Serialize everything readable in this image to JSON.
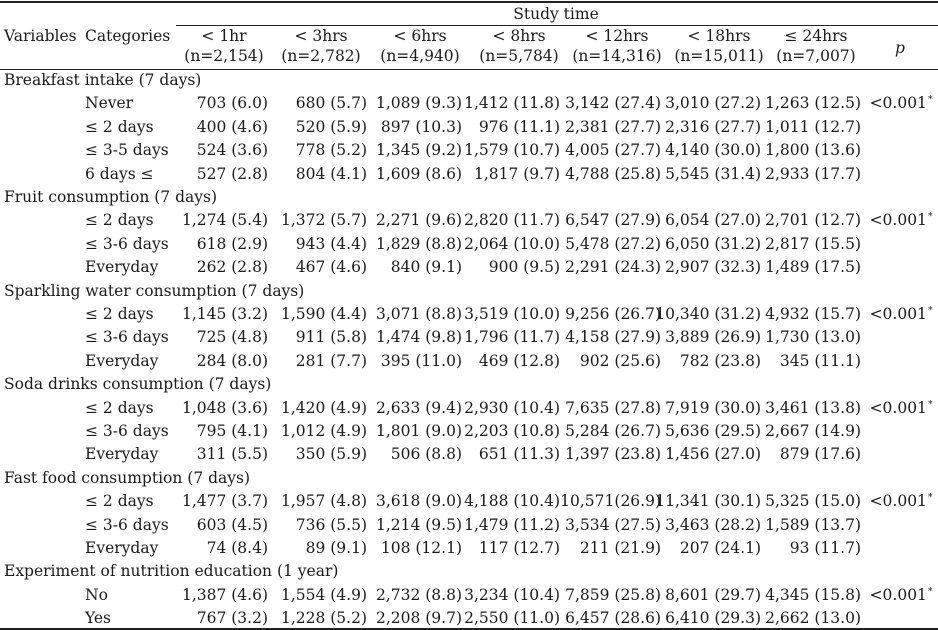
{
  "header": {
    "study_time_label": "Study time",
    "variables_label": "Variables",
    "categories_label": "Categories",
    "p_label": "p",
    "columns": [
      {
        "label": "< 1hr",
        "n": "(n=2,154)"
      },
      {
        "label": "< 3hrs",
        "n": "(n=2,782)"
      },
      {
        "label": "< 6hrs",
        "n": "(n=4,940)"
      },
      {
        "label": "< 8hrs",
        "n": "(n=5,784)"
      },
      {
        "label": "< 12hrs",
        "n": "(n=14,316)"
      },
      {
        "label": "< 18hrs",
        "n": "(n=15,011)"
      },
      {
        "label": "≤ 24hrs",
        "n": "(n=7,007)"
      }
    ]
  },
  "sections": [
    {
      "title": "Breakfast intake (7 days)",
      "p": "<0.001",
      "p_mark": "*",
      "rows": [
        {
          "cat": "Never",
          "vals": [
            "703 (6.0)",
            "680 (5.7)",
            "1,089 (9.3)",
            "1,412 (11.8)",
            "3,142 (27.4)",
            "3,010 (27.2)",
            "1,263 (12.5)"
          ]
        },
        {
          "cat": "≤ 2 days",
          "vals": [
            "400 (4.6)",
            "520 (5.9)",
            "897 (10.3)",
            "976 (11.1)",
            "2,381 (27.7)",
            "2,316 (27.7)",
            "1,011 (12.7)"
          ]
        },
        {
          "cat": "≤ 3-5 days",
          "vals": [
            "524 (3.6)",
            "778 (5.2)",
            "1,345 (9.2)",
            "1,579 (10.7)",
            "4,005 (27.7)",
            "4,140 (30.0)",
            "1,800 (13.6)"
          ]
        },
        {
          "cat": "6 days ≤",
          "vals": [
            "527 (2.8)",
            "804 (4.1)",
            "1,609 (8.6)",
            "1,817 (9.7)",
            "4,788 (25.8)",
            "5,545 (31.4)",
            "2,933 (17.7)"
          ]
        }
      ]
    },
    {
      "title": "Fruit consumption (7 days)",
      "p": "<0.001",
      "p_mark": "*",
      "rows": [
        {
          "cat": "≤ 2 days",
          "vals": [
            "1,274 (5.4)",
            "1,372 (5.7)",
            "2,271 (9.6)",
            "2,820 (11.7)",
            "6,547 (27.9)",
            "6,054 (27.0)",
            "2,701 (12.7)"
          ]
        },
        {
          "cat": "≤ 3-6 days",
          "vals": [
            "618 (2.9)",
            "943 (4.4)",
            "1,829 (8.8)",
            "2,064 (10.0)",
            "5,478 (27.2)",
            "6,050 (31.2)",
            "2,817 (15.5)"
          ]
        },
        {
          "cat": "Everyday",
          "vals": [
            "262 (2.8)",
            "467 (4.6)",
            "840 (9.1)",
            "900 (9.5)",
            "2,291 (24.3)",
            "2,907 (32.3)",
            "1,489 (17.5)"
          ]
        }
      ]
    },
    {
      "title": "Sparkling water consumption (7 days)",
      "p": "<0.001",
      "p_mark": "*",
      "rows": [
        {
          "cat": "≤ 2 days",
          "vals": [
            "1,145 (3.2)",
            "1,590 (4.4)",
            "3,071 (8.8)",
            "3,519 (10.0)",
            "9,256 (26.7)",
            "10,340 (31.2)",
            "4,932 (15.7)"
          ]
        },
        {
          "cat": "≤ 3-6 days",
          "vals": [
            "725 (4.8)",
            "911 (5.8)",
            "1,474 (9.8)",
            "1,796 (11.7)",
            "4,158 (27.9)",
            "3,889 (26.9)",
            "1,730 (13.0)"
          ]
        },
        {
          "cat": "Everyday",
          "vals": [
            "284 (8.0)",
            "281 (7.7)",
            "395 (11.0)",
            "469 (12.8)",
            "902 (25.6)",
            "782 (23.8)",
            "345 (11.1)"
          ]
        }
      ]
    },
    {
      "title": "Soda drinks consumption (7 days)",
      "p": "<0.001",
      "p_mark": "*",
      "rows": [
        {
          "cat": "≤ 2 days",
          "vals": [
            "1,048 (3.6)",
            "1,420 (4.9)",
            "2,633 (9.4)",
            "2,930 (10.4)",
            "7,635 (27.8)",
            "7,919 (30.0)",
            "3,461 (13.8)"
          ]
        },
        {
          "cat": "≤ 3-6 days",
          "vals": [
            "795 (4.1)",
            "1,012 (4.9)",
            "1,801 (9.0)",
            "2,203 (10.8)",
            "5,284 (26.7)",
            "5,636 (29.5)",
            "2,667 (14.9)"
          ]
        },
        {
          "cat": "Everyday",
          "vals": [
            "311 (5.5)",
            "350 (5.9)",
            "506 (8.8)",
            "651 (11.3)",
            "1,397 (23.8)",
            "1,456 (27.0)",
            "879 (17.6)"
          ]
        }
      ]
    },
    {
      "title": "Fast food consumption (7 days)",
      "p": "<0.001",
      "p_mark": "*",
      "rows": [
        {
          "cat": "≤ 2 days",
          "vals": [
            "1,477 (3.7)",
            "1,957 (4.8)",
            "3,618 (9.0)",
            "4,188 (10.4)",
            "10,571(26.9)",
            "11,341 (30.1)",
            "5,325 (15.0)"
          ]
        },
        {
          "cat": "≤ 3-6 days",
          "vals": [
            "603 (4.5)",
            "736 (5.5)",
            "1,214 (9.5)",
            "1,479 (11.2)",
            "3,534 (27.5)",
            "3,463 (28.2)",
            "1,589 (13.7)"
          ]
        },
        {
          "cat": "Everyday",
          "vals": [
            "74 (8.4)",
            "89 (9.1)",
            "108 (12.1)",
            "117 (12.7)",
            "211 (21.9)",
            "207 (24.1)",
            "93 (11.7)"
          ]
        }
      ]
    },
    {
      "title": "Experiment of nutrition education (1 year)",
      "p": "<0.001",
      "p_mark": "*",
      "rows": [
        {
          "cat": "No",
          "vals": [
            "1,387 (4.6)",
            "1,554 (4.9)",
            "2,732 (8.8)",
            "3,234 (10.4)",
            "7,859 (25.8)",
            "8,601 (29.7)",
            "4,345 (15.8)"
          ]
        },
        {
          "cat": "Yes",
          "vals": [
            "767 (3.2)",
            "1,228 (5.2)",
            "2,208 (9.7)",
            "2,550 (11.0)",
            "6,457 (28.6)",
            "6,410 (29.3)",
            "2,662 (13.0)"
          ]
        }
      ]
    }
  ]
}
